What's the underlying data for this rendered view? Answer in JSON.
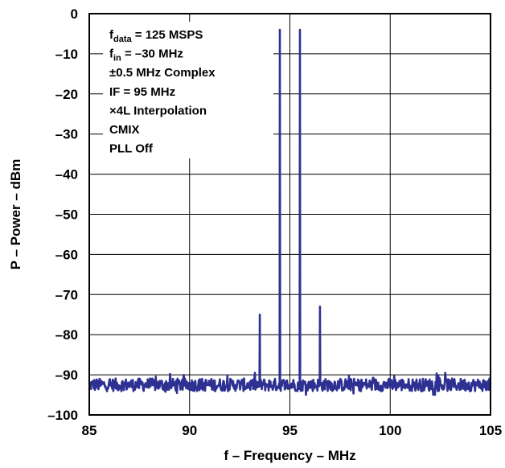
{
  "chart_data": {
    "type": "line",
    "title": "",
    "xlabel": "f – Frequency – MHz",
    "ylabel": "P – Power – dBm",
    "xlim": [
      85,
      105
    ],
    "ylim": [
      -100,
      0
    ],
    "x_ticks": [
      85,
      90,
      95,
      100,
      105
    ],
    "y_ticks": [
      0,
      -10,
      -20,
      -30,
      -40,
      -50,
      -60,
      -70,
      -80,
      -90,
      -100
    ],
    "x_tick_labels": [
      "85",
      "90",
      "95",
      "100",
      "105"
    ],
    "y_tick_labels": [
      "0",
      "–10",
      "–20",
      "–30",
      "–40",
      "–50",
      "–60",
      "–70",
      "–80",
      "–90",
      "–100"
    ],
    "grid": true,
    "line_color": "#2e3192",
    "noise_floor_dbm": -92.5,
    "noise_range_dbm": [
      -95,
      -89.5
    ],
    "peaks": [
      {
        "x": 93.5,
        "y": -75
      },
      {
        "x": 94.5,
        "y": -4
      },
      {
        "x": 95.5,
        "y": -4
      },
      {
        "x": 96.5,
        "y": -73
      }
    ],
    "annotations": [
      {
        "main": "f",
        "sub": "data",
        "rest": " = 125 MSPS"
      },
      {
        "main": "f",
        "sub": "in",
        "rest": " = –30 MHz"
      },
      {
        "main": "±0.5 MHz Complex",
        "sub": "",
        "rest": ""
      },
      {
        "main": "IF = 95 MHz",
        "sub": "",
        "rest": ""
      },
      {
        "main": "×4L Interpolation",
        "sub": "",
        "rest": ""
      },
      {
        "main": "CMIX",
        "sub": "",
        "rest": ""
      },
      {
        "main": "PLL Off",
        "sub": "",
        "rest": ""
      }
    ]
  }
}
